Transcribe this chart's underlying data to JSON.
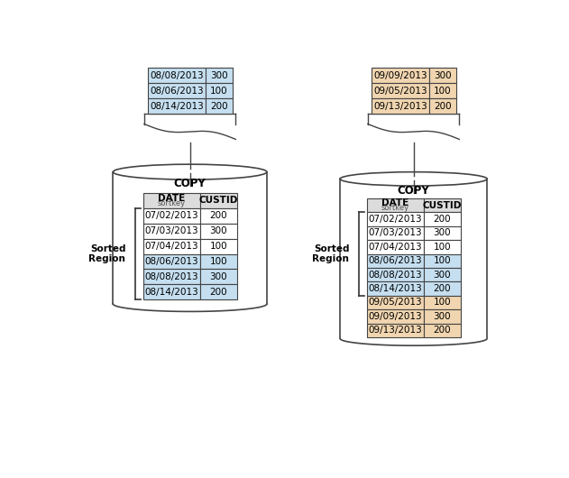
{
  "left_table_incoming": {
    "rows": [
      [
        "08/08/2013",
        "300"
      ],
      [
        "08/06/2013",
        "100"
      ],
      [
        "08/14/2013",
        "200"
      ]
    ],
    "color": "#c5dff0"
  },
  "right_table_incoming": {
    "rows": [
      [
        "09/09/2013",
        "300"
      ],
      [
        "09/05/2013",
        "100"
      ],
      [
        "09/13/2013",
        "200"
      ]
    ],
    "color": "#f0d5b0"
  },
  "left_table_db": {
    "header": [
      "DATE\nsortkey",
      "CUSTID"
    ],
    "rows": [
      [
        "07/02/2013",
        "200",
        "#ffffff"
      ],
      [
        "07/03/2013",
        "300",
        "#ffffff"
      ],
      [
        "07/04/2013",
        "100",
        "#ffffff"
      ],
      [
        "08/06/2013",
        "100",
        "#c5dff0"
      ],
      [
        "08/08/2013",
        "300",
        "#c5dff0"
      ],
      [
        "08/14/2013",
        "200",
        "#c5dff0"
      ]
    ]
  },
  "right_table_db": {
    "header": [
      "DATE\nsortkey",
      "CUSTID"
    ],
    "rows": [
      [
        "07/02/2013",
        "200",
        "#ffffff"
      ],
      [
        "07/03/2013",
        "300",
        "#ffffff"
      ],
      [
        "07/04/2013",
        "100",
        "#ffffff"
      ],
      [
        "08/06/2013",
        "100",
        "#c5dff0"
      ],
      [
        "08/08/2013",
        "300",
        "#c5dff0"
      ],
      [
        "08/14/2013",
        "200",
        "#c5dff0"
      ],
      [
        "09/05/2013",
        "100",
        "#f0d5b0"
      ],
      [
        "09/09/2013",
        "300",
        "#f0d5b0"
      ],
      [
        "09/13/2013",
        "200",
        "#f0d5b0"
      ]
    ]
  },
  "copy_label": "COPY",
  "sorted_region_label_left": "Sorted\nRegion",
  "sorted_region_label_right": "Sorted\nRegion",
  "background_color": "#ffffff",
  "border_color": "#444444",
  "header_bg": "#e0e0e0"
}
